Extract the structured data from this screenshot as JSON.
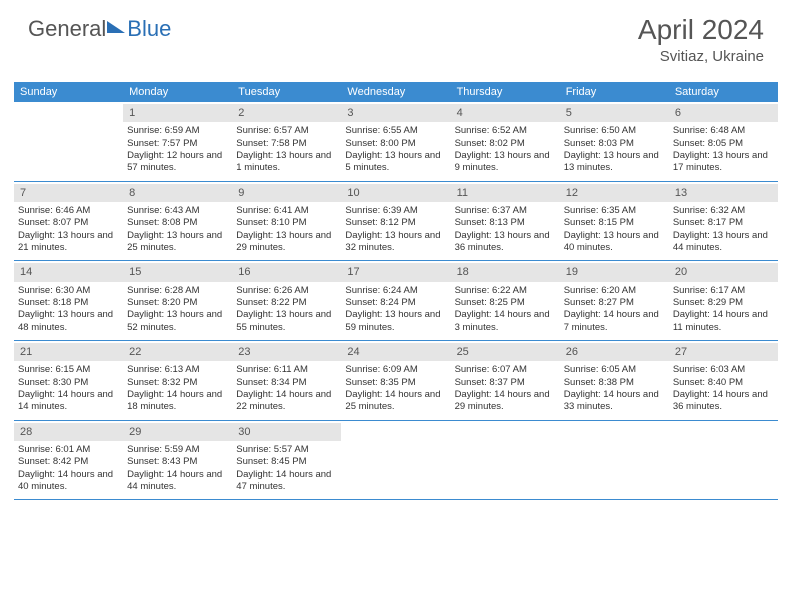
{
  "brand": {
    "part1": "General",
    "part2": "Blue"
  },
  "title": "April 2024",
  "location": "Svitiaz, Ukraine",
  "colors": {
    "header_bg": "#3b8bd0",
    "header_text": "#ffffff",
    "daynum_bg": "#e5e5e5",
    "text": "#333333",
    "rule": "#3b8bd0",
    "brand_blue": "#2a6fb5",
    "page_bg": "#ffffff"
  },
  "day_headers": [
    "Sunday",
    "Monday",
    "Tuesday",
    "Wednesday",
    "Thursday",
    "Friday",
    "Saturday"
  ],
  "weeks": [
    [
      {
        "n": "",
        "sr": "",
        "ss": "",
        "dl": ""
      },
      {
        "n": "1",
        "sr": "Sunrise: 6:59 AM",
        "ss": "Sunset: 7:57 PM",
        "dl": "Daylight: 12 hours and 57 minutes."
      },
      {
        "n": "2",
        "sr": "Sunrise: 6:57 AM",
        "ss": "Sunset: 7:58 PM",
        "dl": "Daylight: 13 hours and 1 minutes."
      },
      {
        "n": "3",
        "sr": "Sunrise: 6:55 AM",
        "ss": "Sunset: 8:00 PM",
        "dl": "Daylight: 13 hours and 5 minutes."
      },
      {
        "n": "4",
        "sr": "Sunrise: 6:52 AM",
        "ss": "Sunset: 8:02 PM",
        "dl": "Daylight: 13 hours and 9 minutes."
      },
      {
        "n": "5",
        "sr": "Sunrise: 6:50 AM",
        "ss": "Sunset: 8:03 PM",
        "dl": "Daylight: 13 hours and 13 minutes."
      },
      {
        "n": "6",
        "sr": "Sunrise: 6:48 AM",
        "ss": "Sunset: 8:05 PM",
        "dl": "Daylight: 13 hours and 17 minutes."
      }
    ],
    [
      {
        "n": "7",
        "sr": "Sunrise: 6:46 AM",
        "ss": "Sunset: 8:07 PM",
        "dl": "Daylight: 13 hours and 21 minutes."
      },
      {
        "n": "8",
        "sr": "Sunrise: 6:43 AM",
        "ss": "Sunset: 8:08 PM",
        "dl": "Daylight: 13 hours and 25 minutes."
      },
      {
        "n": "9",
        "sr": "Sunrise: 6:41 AM",
        "ss": "Sunset: 8:10 PM",
        "dl": "Daylight: 13 hours and 29 minutes."
      },
      {
        "n": "10",
        "sr": "Sunrise: 6:39 AM",
        "ss": "Sunset: 8:12 PM",
        "dl": "Daylight: 13 hours and 32 minutes."
      },
      {
        "n": "11",
        "sr": "Sunrise: 6:37 AM",
        "ss": "Sunset: 8:13 PM",
        "dl": "Daylight: 13 hours and 36 minutes."
      },
      {
        "n": "12",
        "sr": "Sunrise: 6:35 AM",
        "ss": "Sunset: 8:15 PM",
        "dl": "Daylight: 13 hours and 40 minutes."
      },
      {
        "n": "13",
        "sr": "Sunrise: 6:32 AM",
        "ss": "Sunset: 8:17 PM",
        "dl": "Daylight: 13 hours and 44 minutes."
      }
    ],
    [
      {
        "n": "14",
        "sr": "Sunrise: 6:30 AM",
        "ss": "Sunset: 8:18 PM",
        "dl": "Daylight: 13 hours and 48 minutes."
      },
      {
        "n": "15",
        "sr": "Sunrise: 6:28 AM",
        "ss": "Sunset: 8:20 PM",
        "dl": "Daylight: 13 hours and 52 minutes."
      },
      {
        "n": "16",
        "sr": "Sunrise: 6:26 AM",
        "ss": "Sunset: 8:22 PM",
        "dl": "Daylight: 13 hours and 55 minutes."
      },
      {
        "n": "17",
        "sr": "Sunrise: 6:24 AM",
        "ss": "Sunset: 8:24 PM",
        "dl": "Daylight: 13 hours and 59 minutes."
      },
      {
        "n": "18",
        "sr": "Sunrise: 6:22 AM",
        "ss": "Sunset: 8:25 PM",
        "dl": "Daylight: 14 hours and 3 minutes."
      },
      {
        "n": "19",
        "sr": "Sunrise: 6:20 AM",
        "ss": "Sunset: 8:27 PM",
        "dl": "Daylight: 14 hours and 7 minutes."
      },
      {
        "n": "20",
        "sr": "Sunrise: 6:17 AM",
        "ss": "Sunset: 8:29 PM",
        "dl": "Daylight: 14 hours and 11 minutes."
      }
    ],
    [
      {
        "n": "21",
        "sr": "Sunrise: 6:15 AM",
        "ss": "Sunset: 8:30 PM",
        "dl": "Daylight: 14 hours and 14 minutes."
      },
      {
        "n": "22",
        "sr": "Sunrise: 6:13 AM",
        "ss": "Sunset: 8:32 PM",
        "dl": "Daylight: 14 hours and 18 minutes."
      },
      {
        "n": "23",
        "sr": "Sunrise: 6:11 AM",
        "ss": "Sunset: 8:34 PM",
        "dl": "Daylight: 14 hours and 22 minutes."
      },
      {
        "n": "24",
        "sr": "Sunrise: 6:09 AM",
        "ss": "Sunset: 8:35 PM",
        "dl": "Daylight: 14 hours and 25 minutes."
      },
      {
        "n": "25",
        "sr": "Sunrise: 6:07 AM",
        "ss": "Sunset: 8:37 PM",
        "dl": "Daylight: 14 hours and 29 minutes."
      },
      {
        "n": "26",
        "sr": "Sunrise: 6:05 AM",
        "ss": "Sunset: 8:38 PM",
        "dl": "Daylight: 14 hours and 33 minutes."
      },
      {
        "n": "27",
        "sr": "Sunrise: 6:03 AM",
        "ss": "Sunset: 8:40 PM",
        "dl": "Daylight: 14 hours and 36 minutes."
      }
    ],
    [
      {
        "n": "28",
        "sr": "Sunrise: 6:01 AM",
        "ss": "Sunset: 8:42 PM",
        "dl": "Daylight: 14 hours and 40 minutes."
      },
      {
        "n": "29",
        "sr": "Sunrise: 5:59 AM",
        "ss": "Sunset: 8:43 PM",
        "dl": "Daylight: 14 hours and 44 minutes."
      },
      {
        "n": "30",
        "sr": "Sunrise: 5:57 AM",
        "ss": "Sunset: 8:45 PM",
        "dl": "Daylight: 14 hours and 47 minutes."
      },
      {
        "n": "",
        "sr": "",
        "ss": "",
        "dl": ""
      },
      {
        "n": "",
        "sr": "",
        "ss": "",
        "dl": ""
      },
      {
        "n": "",
        "sr": "",
        "ss": "",
        "dl": ""
      },
      {
        "n": "",
        "sr": "",
        "ss": "",
        "dl": ""
      }
    ]
  ]
}
